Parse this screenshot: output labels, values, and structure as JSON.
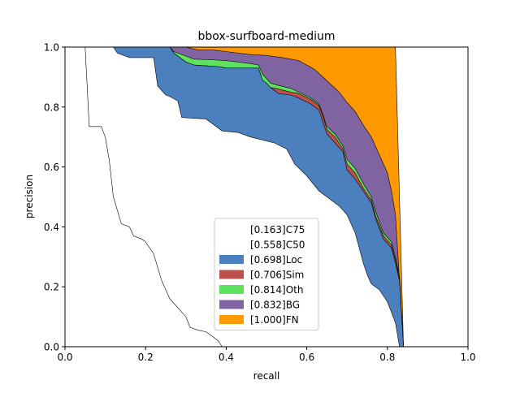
{
  "chart_data": {
    "type": "area",
    "title": "bbox-surfboard-medium",
    "xlabel": "recall",
    "ylabel": "precision",
    "xlim": [
      0,
      1
    ],
    "ylim": [
      0,
      1
    ],
    "x_ticks": [
      "0.0",
      "0.2",
      "0.4",
      "0.6",
      "0.8",
      "1.0"
    ],
    "y_ticks": [
      "0.0",
      "0.2",
      "0.4",
      "0.6",
      "0.8",
      "1.0"
    ],
    "grid": false,
    "legend_position": "lower center",
    "legend": [
      {
        "label": "[0.163]C75",
        "color": "#ffffff"
      },
      {
        "label": "[0.558]C50",
        "color": "#ffffff"
      },
      {
        "label": "[0.698]Loc",
        "color": "#4c7fbe"
      },
      {
        "label": "[0.706]Sim",
        "color": "#c0504d"
      },
      {
        "label": "[0.814]Oth",
        "color": "#5ee25e"
      },
      {
        "label": "[0.832]BG",
        "color": "#8064a2"
      },
      {
        "label": "[1.000]FN",
        "color": "#ff9900"
      }
    ],
    "series": [
      {
        "name": "[0.163]C75",
        "color": "#ffffff",
        "points": [
          [
            0.0,
            1.0
          ],
          [
            0.05,
            1.0
          ],
          [
            0.06,
            0.735
          ],
          [
            0.09,
            0.735
          ],
          [
            0.1,
            0.7
          ],
          [
            0.11,
            0.62
          ],
          [
            0.12,
            0.5
          ],
          [
            0.14,
            0.41
          ],
          [
            0.16,
            0.4
          ],
          [
            0.17,
            0.37
          ],
          [
            0.19,
            0.36
          ],
          [
            0.2,
            0.35
          ],
          [
            0.22,
            0.31
          ],
          [
            0.24,
            0.22
          ],
          [
            0.26,
            0.16
          ],
          [
            0.28,
            0.13
          ],
          [
            0.3,
            0.1
          ],
          [
            0.31,
            0.065
          ],
          [
            0.33,
            0.055
          ],
          [
            0.35,
            0.05
          ],
          [
            0.37,
            0.03
          ],
          [
            0.38,
            0.02
          ],
          [
            0.39,
            0.0
          ]
        ]
      },
      {
        "name": "[0.558]C50",
        "color": "#ffffff",
        "points": [
          [
            0.0,
            1.0
          ],
          [
            0.12,
            1.0
          ],
          [
            0.13,
            0.98
          ],
          [
            0.15,
            0.97
          ],
          [
            0.16,
            0.965
          ],
          [
            0.22,
            0.965
          ],
          [
            0.23,
            0.87
          ],
          [
            0.25,
            0.84
          ],
          [
            0.26,
            0.835
          ],
          [
            0.28,
            0.82
          ],
          [
            0.29,
            0.765
          ],
          [
            0.35,
            0.76
          ],
          [
            0.37,
            0.74
          ],
          [
            0.39,
            0.72
          ],
          [
            0.43,
            0.715
          ],
          [
            0.46,
            0.7
          ],
          [
            0.52,
            0.68
          ],
          [
            0.55,
            0.66
          ],
          [
            0.57,
            0.61
          ],
          [
            0.6,
            0.57
          ],
          [
            0.63,
            0.52
          ],
          [
            0.66,
            0.49
          ],
          [
            0.68,
            0.47
          ],
          [
            0.7,
            0.44
          ],
          [
            0.72,
            0.38
          ],
          [
            0.73,
            0.33
          ],
          [
            0.74,
            0.28
          ],
          [
            0.75,
            0.24
          ],
          [
            0.76,
            0.21
          ],
          [
            0.78,
            0.19
          ],
          [
            0.8,
            0.15
          ],
          [
            0.82,
            0.08
          ],
          [
            0.83,
            0.0
          ]
        ]
      },
      {
        "name": "[0.698]Loc",
        "color": "#4c7fbe",
        "points": [
          [
            0.0,
            1.0
          ],
          [
            0.26,
            1.0
          ],
          [
            0.27,
            0.98
          ],
          [
            0.29,
            0.96
          ],
          [
            0.3,
            0.95
          ],
          [
            0.32,
            0.94
          ],
          [
            0.38,
            0.935
          ],
          [
            0.4,
            0.93
          ],
          [
            0.48,
            0.93
          ],
          [
            0.49,
            0.89
          ],
          [
            0.5,
            0.88
          ],
          [
            0.51,
            0.865
          ],
          [
            0.53,
            0.845
          ],
          [
            0.56,
            0.84
          ],
          [
            0.58,
            0.83
          ],
          [
            0.61,
            0.81
          ],
          [
            0.63,
            0.79
          ],
          [
            0.64,
            0.75
          ],
          [
            0.65,
            0.71
          ],
          [
            0.67,
            0.68
          ],
          [
            0.69,
            0.65
          ],
          [
            0.7,
            0.59
          ],
          [
            0.72,
            0.56
          ],
          [
            0.74,
            0.52
          ],
          [
            0.76,
            0.48
          ],
          [
            0.77,
            0.43
          ],
          [
            0.79,
            0.36
          ],
          [
            0.81,
            0.33
          ],
          [
            0.82,
            0.28
          ],
          [
            0.83,
            0.22
          ],
          [
            0.84,
            0.0
          ]
        ]
      },
      {
        "name": "[0.706]Sim",
        "color": "#c0504d",
        "points": [
          [
            0.0,
            1.0
          ],
          [
            0.26,
            1.0
          ],
          [
            0.27,
            0.98
          ],
          [
            0.29,
            0.96
          ],
          [
            0.3,
            0.95
          ],
          [
            0.32,
            0.94
          ],
          [
            0.38,
            0.935
          ],
          [
            0.4,
            0.93
          ],
          [
            0.48,
            0.93
          ],
          [
            0.49,
            0.89
          ],
          [
            0.5,
            0.88
          ],
          [
            0.51,
            0.865
          ],
          [
            0.53,
            0.86
          ],
          [
            0.56,
            0.85
          ],
          [
            0.58,
            0.845
          ],
          [
            0.61,
            0.825
          ],
          [
            0.63,
            0.805
          ],
          [
            0.64,
            0.77
          ],
          [
            0.65,
            0.725
          ],
          [
            0.67,
            0.7
          ],
          [
            0.69,
            0.66
          ],
          [
            0.7,
            0.61
          ],
          [
            0.72,
            0.58
          ],
          [
            0.74,
            0.53
          ],
          [
            0.76,
            0.49
          ],
          [
            0.77,
            0.44
          ],
          [
            0.79,
            0.37
          ],
          [
            0.81,
            0.34
          ],
          [
            0.82,
            0.29
          ],
          [
            0.83,
            0.225
          ],
          [
            0.84,
            0.0
          ]
        ]
      },
      {
        "name": "[0.814]Oth",
        "color": "#5ee25e",
        "points": [
          [
            0.0,
            1.0
          ],
          [
            0.26,
            1.0
          ],
          [
            0.27,
            0.985
          ],
          [
            0.3,
            0.97
          ],
          [
            0.32,
            0.96
          ],
          [
            0.36,
            0.958
          ],
          [
            0.4,
            0.955
          ],
          [
            0.46,
            0.945
          ],
          [
            0.48,
            0.94
          ],
          [
            0.49,
            0.91
          ],
          [
            0.5,
            0.895
          ],
          [
            0.51,
            0.88
          ],
          [
            0.53,
            0.872
          ],
          [
            0.56,
            0.862
          ],
          [
            0.58,
            0.85
          ],
          [
            0.61,
            0.83
          ],
          [
            0.63,
            0.81
          ],
          [
            0.64,
            0.775
          ],
          [
            0.65,
            0.735
          ],
          [
            0.67,
            0.71
          ],
          [
            0.69,
            0.67
          ],
          [
            0.7,
            0.625
          ],
          [
            0.72,
            0.595
          ],
          [
            0.74,
            0.545
          ],
          [
            0.76,
            0.5
          ],
          [
            0.77,
            0.455
          ],
          [
            0.79,
            0.38
          ],
          [
            0.81,
            0.35
          ],
          [
            0.82,
            0.3
          ],
          [
            0.83,
            0.235
          ],
          [
            0.84,
            0.0
          ]
        ]
      },
      {
        "name": "[0.832]BG",
        "color": "#8064a2",
        "points": [
          [
            0.0,
            1.0
          ],
          [
            0.26,
            1.0
          ],
          [
            0.3,
            1.0
          ],
          [
            0.33,
            0.99
          ],
          [
            0.37,
            0.99
          ],
          [
            0.4,
            0.985
          ],
          [
            0.46,
            0.975
          ],
          [
            0.5,
            0.972
          ],
          [
            0.54,
            0.965
          ],
          [
            0.58,
            0.955
          ],
          [
            0.6,
            0.94
          ],
          [
            0.62,
            0.925
          ],
          [
            0.64,
            0.9
          ],
          [
            0.66,
            0.875
          ],
          [
            0.68,
            0.85
          ],
          [
            0.7,
            0.815
          ],
          [
            0.72,
            0.785
          ],
          [
            0.74,
            0.74
          ],
          [
            0.76,
            0.7
          ],
          [
            0.78,
            0.64
          ],
          [
            0.8,
            0.58
          ],
          [
            0.81,
            0.52
          ],
          [
            0.82,
            0.44
          ],
          [
            0.825,
            0.33
          ],
          [
            0.84,
            0.0
          ]
        ]
      },
      {
        "name": "[1.000]FN",
        "color": "#ff9900",
        "points": [
          [
            0.0,
            1.0
          ],
          [
            0.82,
            1.0
          ],
          [
            0.84,
            0.0
          ]
        ]
      }
    ]
  }
}
